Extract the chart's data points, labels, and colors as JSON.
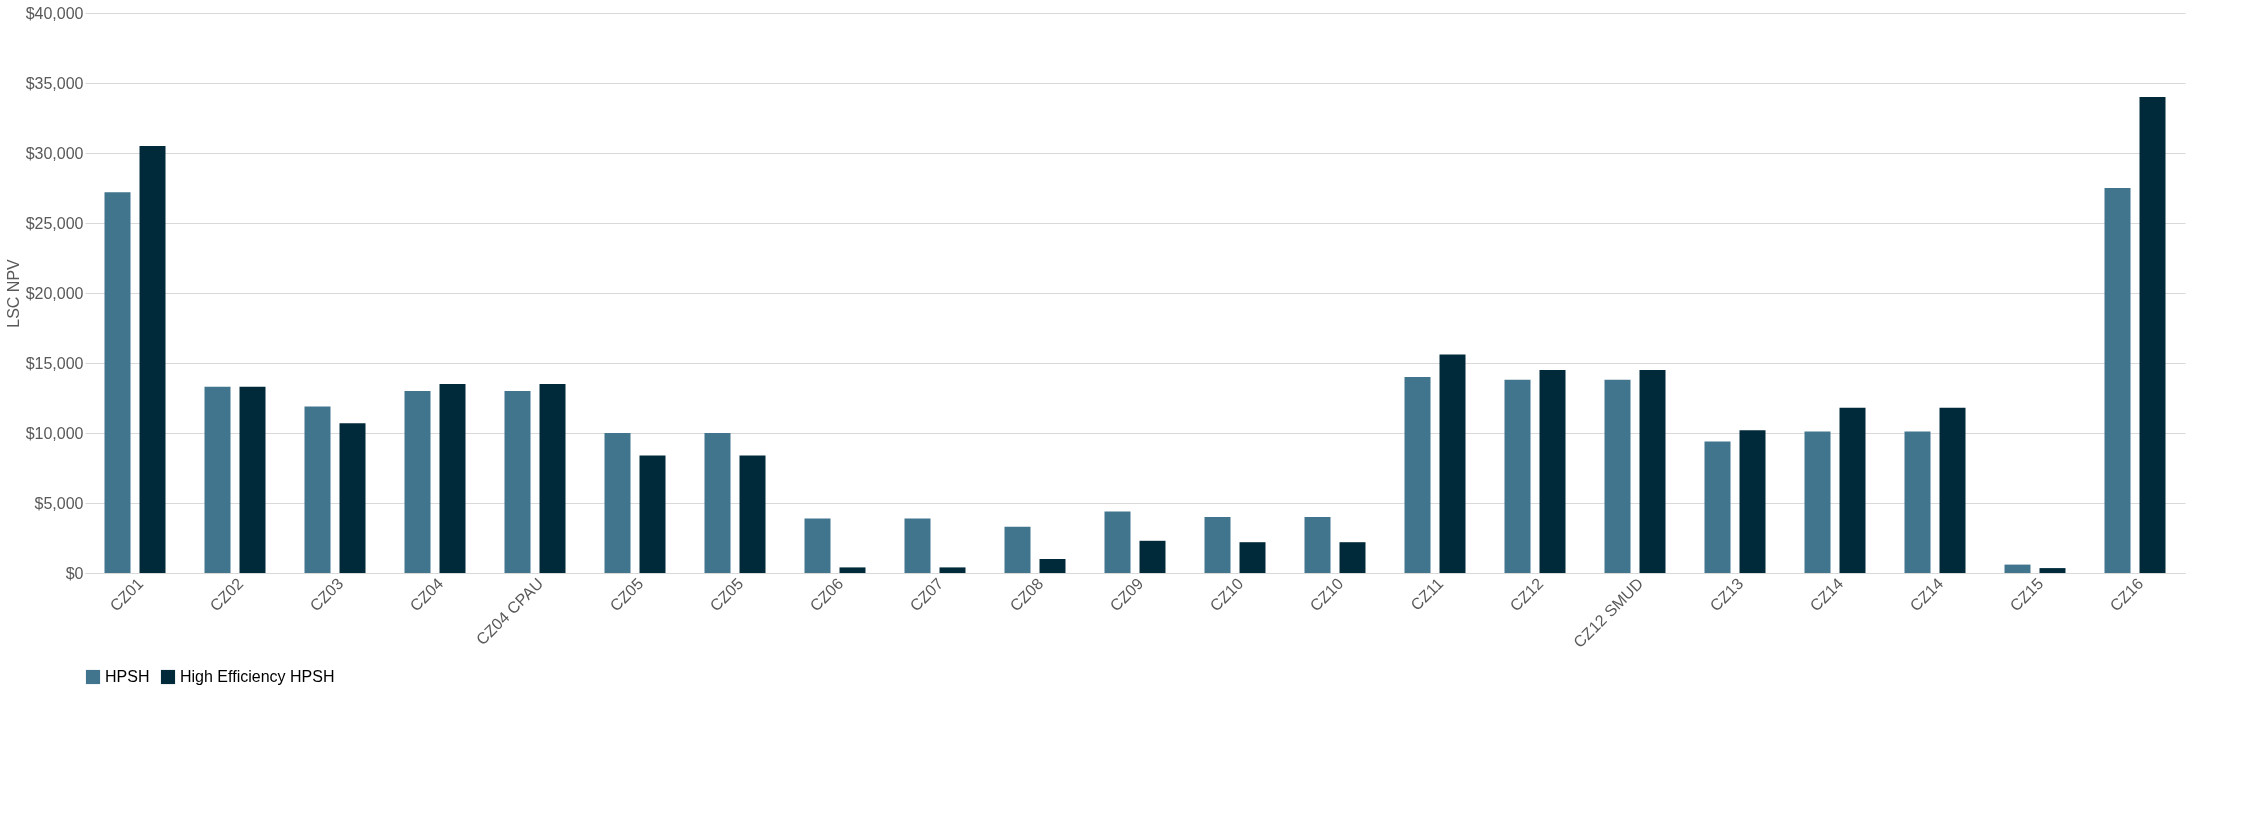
{
  "chart_data": {
    "type": "bar",
    "ylabel": "LSC NPV",
    "categories": [
      "CZ01",
      "CZ02",
      "CZ03",
      "CZ04",
      "CZ04 CPAU",
      "CZ05",
      "CZ05",
      "CZ06",
      "CZ07",
      "CZ08",
      "CZ09",
      "CZ10",
      "CZ10",
      "CZ11",
      "CZ12",
      "CZ12 SMUD",
      "CZ13",
      "CZ14",
      "CZ14",
      "CZ15",
      "CZ16"
    ],
    "series": [
      {
        "name": "HPSH",
        "color": "#41748d",
        "values": [
          27200,
          13300,
          11900,
          13000,
          13000,
          10000,
          10000,
          3900,
          3900,
          3300,
          4400,
          4000,
          4000,
          14000,
          13800,
          13800,
          9400,
          10100,
          10100,
          600,
          27500
        ]
      },
      {
        "name": "High Efficiency HPSH",
        "color": "#002a3a",
        "values": [
          30500,
          13300,
          10700,
          13500,
          13500,
          8400,
          8400,
          400,
          400,
          1000,
          2300,
          2200,
          2200,
          15600,
          14500,
          14500,
          10200,
          11800,
          11800,
          350,
          34000
        ]
      }
    ],
    "ylim": [
      0,
      40000
    ],
    "yticks": [
      {
        "value": 0,
        "label": "$0"
      },
      {
        "value": 5000,
        "label": "$5,000"
      },
      {
        "value": 10000,
        "label": "$10,000"
      },
      {
        "value": 15000,
        "label": "$15,000"
      },
      {
        "value": 20000,
        "label": "$20,000"
      },
      {
        "value": 25000,
        "label": "$25,000"
      },
      {
        "value": 30000,
        "label": "$30,000"
      },
      {
        "value": 35000,
        "label": "$35,000"
      },
      {
        "value": 40000,
        "label": "$40,000"
      }
    ],
    "grid": "y",
    "legend": "bottom"
  }
}
